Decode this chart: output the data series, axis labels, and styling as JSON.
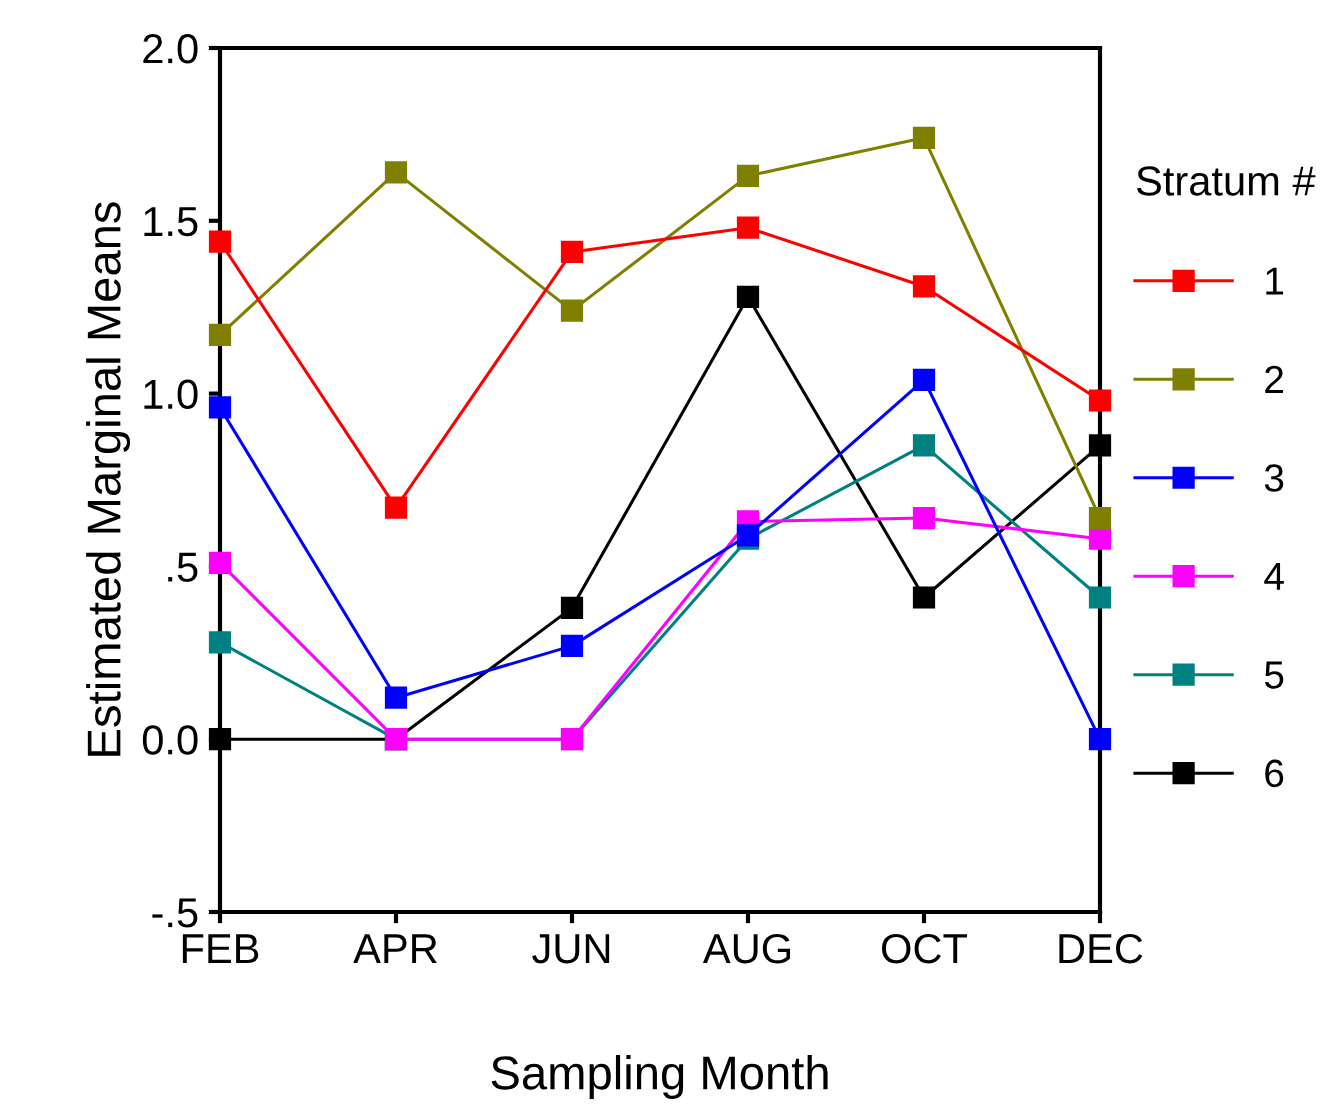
{
  "chart_data": {
    "type": "line",
    "xlabel": "Sampling Month",
    "ylabel": "Estimated Marginal Means",
    "legend_title": "Stratum #",
    "categories": [
      "FEB",
      "APR",
      "JUN",
      "AUG",
      "OCT",
      "DEC"
    ],
    "ylim": [
      -0.5,
      2.0
    ],
    "yticks": [
      {
        "value": -0.5,
        "label": "-.5"
      },
      {
        "value": 0,
        "label": "0.0"
      },
      {
        "value": 0.5,
        "label": ".5"
      },
      {
        "value": 1.0,
        "label": "1.0"
      },
      {
        "value": 1.5,
        "label": "1.5"
      },
      {
        "value": 2.0,
        "label": "2.0"
      }
    ],
    "grid": false,
    "legend": "right",
    "marker": "square",
    "line_style": "solid",
    "series": [
      {
        "name": "1",
        "color": "#ff0000",
        "values": [
          1.44,
          0.67,
          1.41,
          1.48,
          1.31,
          0.98
        ]
      },
      {
        "name": "2",
        "color": "#808000",
        "values": [
          1.17,
          1.64,
          1.24,
          1.63,
          1.74,
          0.64
        ]
      },
      {
        "name": "3",
        "color": "#0000ff",
        "values": [
          0.96,
          0.12,
          0.27,
          0.59,
          1.04,
          0.0
        ]
      },
      {
        "name": "4",
        "color": "#ff00ff",
        "values": [
          0.51,
          0.0,
          0.0,
          0.63,
          0.64,
          0.58
        ]
      },
      {
        "name": "5",
        "color": "#008080",
        "values": [
          0.28,
          0.0,
          0.0,
          0.58,
          0.85,
          0.41
        ]
      },
      {
        "name": "6",
        "color": "#000000",
        "values": [
          0.0,
          0.0,
          0.38,
          1.28,
          0.41,
          0.85
        ]
      }
    ]
  }
}
